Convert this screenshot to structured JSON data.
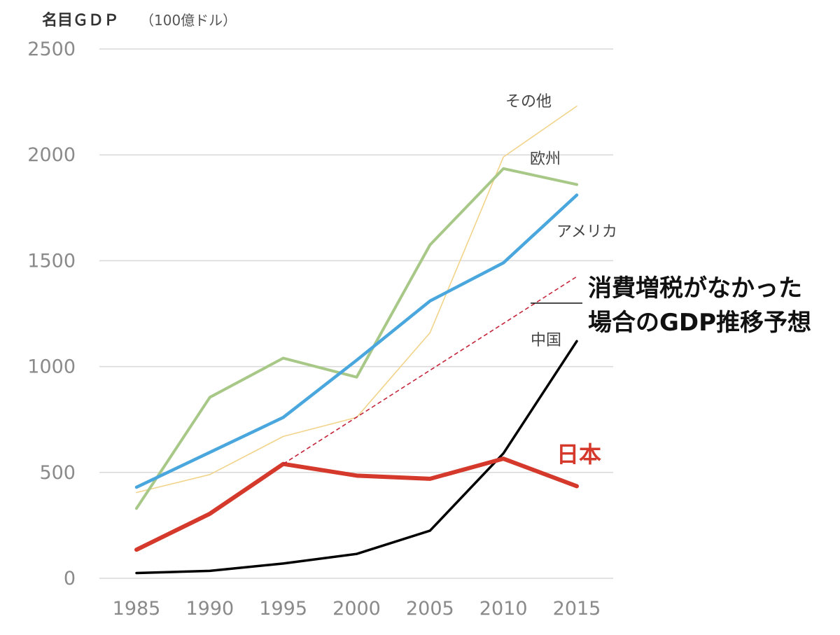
{
  "chart_data": {
    "type": "line",
    "ylabel": "名目ＧＤＰ",
    "ylabel_unit": "（100億ドル）",
    "x": [
      1985,
      1990,
      1995,
      2000,
      2005,
      2010,
      2015
    ],
    "x_tick_labels": [
      "1985",
      "1990",
      "1995",
      "2000",
      "2005",
      "2010",
      "2015"
    ],
    "y_ticks": [
      0,
      500,
      1000,
      1500,
      2000,
      2500
    ],
    "y_tick_labels": [
      "0",
      "500",
      "1000",
      "1500",
      "2000",
      "2500"
    ],
    "ylim": [
      0,
      2500
    ],
    "grid": true,
    "series": [
      {
        "name": "その他",
        "color": "#f2d38a",
        "values": [
          405,
          490,
          670,
          760,
          1160,
          1990,
          2230
        ]
      },
      {
        "name": "欧州",
        "color": "#a8c888",
        "values": [
          330,
          855,
          1040,
          950,
          1575,
          1935,
          1860
        ]
      },
      {
        "name": "アメリカ",
        "color": "#4aa7dd",
        "values": [
          430,
          595,
          760,
          1030,
          1310,
          1490,
          1810
        ]
      },
      {
        "name": "中国",
        "color": "#000000",
        "values": [
          25,
          35,
          70,
          115,
          225,
          590,
          1120
        ]
      },
      {
        "name": "日本",
        "color": "#d4392c",
        "values": [
          135,
          305,
          540,
          485,
          470,
          565,
          435
        ]
      }
    ],
    "projection": {
      "color": "#c4253a",
      "x": [
        1995,
        2015
      ],
      "values": [
        540,
        1425
      ],
      "label_lines": [
        "消費増税がなかった",
        "場合のGDP推移予想"
      ]
    }
  }
}
